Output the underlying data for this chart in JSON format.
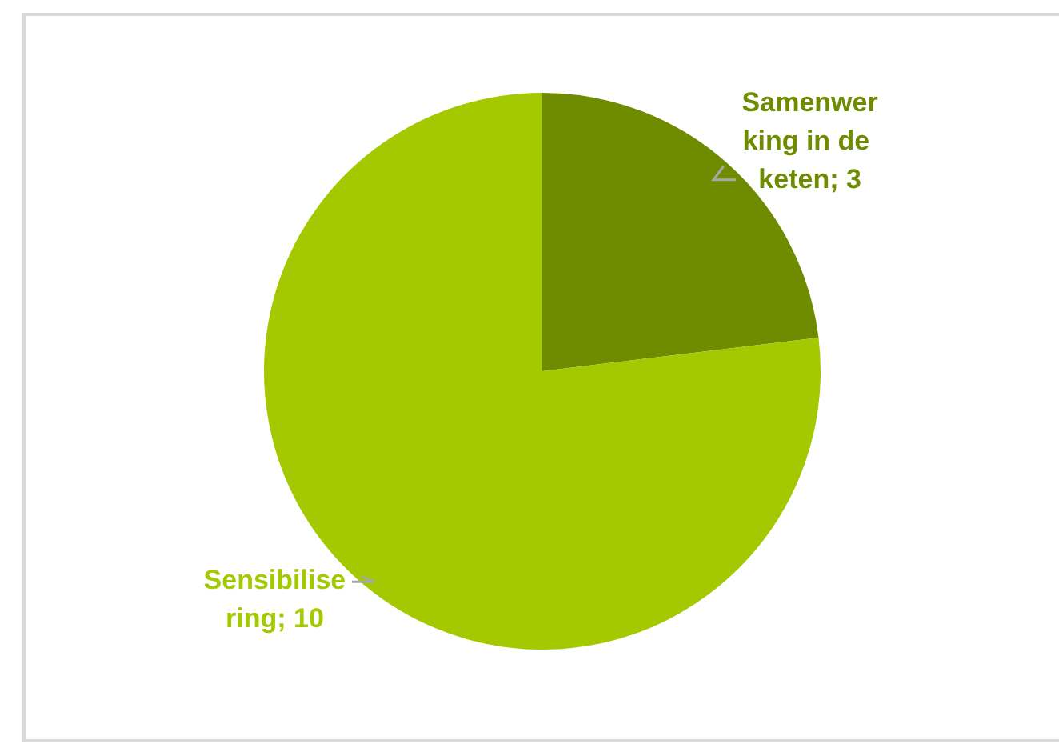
{
  "chart_data": {
    "type": "pie",
    "categories": [
      "Samenwerking in de keten",
      "Sensibilisering"
    ],
    "values": [
      3,
      10
    ],
    "colors": [
      "#6f8c00",
      "#a4c900"
    ],
    "value_labels": [
      "; 3",
      "; 10"
    ],
    "legend": false
  }
}
